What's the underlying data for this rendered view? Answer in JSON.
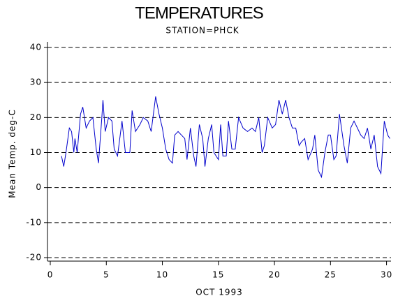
{
  "chart_data": {
    "type": "line",
    "title": "TEMPERATURES",
    "subtitle": "STATION=PHCK",
    "x_label": "OCT 1993",
    "y_label": "Mean Temp. deg-C",
    "x": [
      1.0,
      1.2,
      1.4,
      1.7,
      1.9,
      2.1,
      2.2,
      2.4,
      2.7,
      2.9,
      3.2,
      3.5,
      3.8,
      4.1,
      4.3,
      4.6,
      4.7,
      4.9,
      5.2,
      5.5,
      5.7,
      6.0,
      6.4,
      6.7,
      7.1,
      7.3,
      7.6,
      8.0,
      8.3,
      8.7,
      9.0,
      9.4,
      9.7,
      10.0,
      10.3,
      10.6,
      10.9,
      11.1,
      11.4,
      11.7,
      12.0,
      12.2,
      12.5,
      12.8,
      13.0,
      13.3,
      13.6,
      13.8,
      14.1,
      14.4,
      14.6,
      15.0,
      15.2,
      15.4,
      15.7,
      15.9,
      16.2,
      16.5,
      16.8,
      17.2,
      17.6,
      18.0,
      18.3,
      18.6,
      18.9,
      19.1,
      19.4,
      19.8,
      20.1,
      20.4,
      20.7,
      21.0,
      21.3,
      21.6,
      21.9,
      22.2,
      22.4,
      22.7,
      23.0,
      23.4,
      23.6,
      23.9,
      24.2,
      24.5,
      24.8,
      25.0,
      25.3,
      25.5,
      25.8,
      26.2,
      26.5,
      26.8,
      27.1,
      27.4,
      27.7,
      28.0,
      28.3,
      28.6,
      28.9,
      29.2,
      29.5,
      29.8,
      30.1,
      30.3
    ],
    "series": [
      {
        "color": "#0000cc",
        "values": [
          9,
          6,
          10,
          17,
          16,
          10,
          14,
          10,
          21,
          23,
          17,
          19,
          20,
          11,
          7,
          20,
          25,
          16,
          20,
          19,
          11,
          9,
          19,
          10,
          10,
          22,
          16,
          18,
          20,
          19,
          16,
          26,
          21,
          17,
          11,
          8,
          7,
          15,
          16,
          15,
          14,
          8,
          17,
          9,
          6,
          18,
          14,
          6,
          14,
          18,
          10,
          8,
          18,
          9,
          9,
          19,
          11,
          11,
          20,
          17,
          16,
          17,
          16,
          20,
          10,
          12,
          20,
          17,
          18,
          25,
          21,
          25,
          20,
          17,
          17,
          12,
          13,
          14,
          8,
          11,
          15,
          5,
          3,
          10,
          15,
          15,
          8,
          9,
          21,
          12,
          7,
          17,
          19,
          17,
          15,
          14,
          17,
          11,
          15,
          6,
          4,
          19,
          15,
          14
        ]
      }
    ],
    "xlim": [
      -0.25,
      30.4
    ],
    "xticks": [
      0,
      5,
      10,
      15,
      20,
      25,
      30
    ],
    "ylim": [
      -21,
      41.6
    ],
    "yticks": [
      -20,
      -10,
      0,
      10,
      20,
      30,
      40
    ],
    "grid": true
  }
}
